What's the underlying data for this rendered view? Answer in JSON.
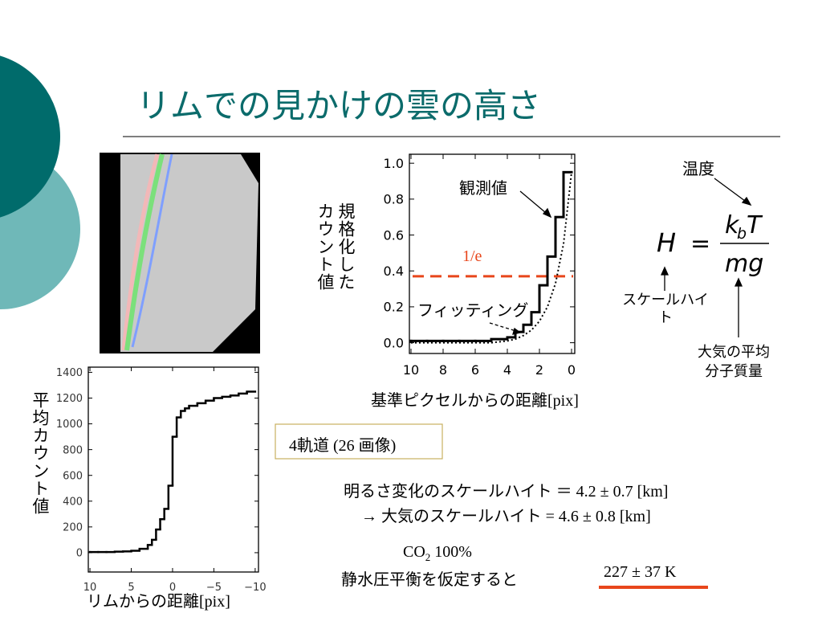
{
  "title": "リムでの見かけの雲の高さ",
  "chart_data": [
    {
      "type": "step",
      "x_label": "基準ピクセルからの距離[pix]",
      "y_label": "規格化したカウント値",
      "x": [
        10,
        9,
        8,
        7,
        6,
        5,
        4,
        3.5,
        3,
        2.5,
        2,
        1.5,
        1,
        0.5,
        0
      ],
      "series": [
        {
          "name": "観測値",
          "color": "#000000",
          "style": "solid",
          "values": [
            0.01,
            0.01,
            0.01,
            0.01,
            0.01,
            0.01,
            0.02,
            0.03,
            0.06,
            0.1,
            0.17,
            0.32,
            0.48,
            0.7,
            0.95
          ]
        },
        {
          "name": "フィッティング",
          "color": "#000000",
          "style": "dotted",
          "values": [
            0,
            0,
            0,
            0,
            0,
            0,
            0.01,
            0.02,
            0.04,
            0.07,
            0.12,
            0.2,
            0.33,
            0.55,
            0.95
          ]
        }
      ],
      "reference_line": {
        "label": "1/e",
        "value": 0.37,
        "color": "#e8461b"
      },
      "xlim": [
        10.1,
        -0.2
      ],
      "xticks": [
        10,
        8,
        6,
        4,
        2,
        0
      ],
      "ylim": [
        -0.06,
        1.05
      ],
      "yticks": [
        {
          "value": 0,
          "label": "0.0"
        },
        0.2,
        0.4,
        0.6,
        0.8,
        {
          "value": 1,
          "label": "1.0"
        }
      ]
    },
    {
      "type": "step",
      "x_label": "リムからの距離[pix]",
      "y_label": "平均カウント値",
      "x": [
        10,
        9,
        8,
        7,
        6,
        5,
        4,
        3,
        2.5,
        2,
        1.5,
        1,
        0.5,
        0,
        -0.5,
        -1,
        -1.5,
        -2,
        -3,
        -4,
        -5,
        -6,
        -7,
        -8,
        -9,
        -10
      ],
      "series": [
        {
          "color": "#000000",
          "style": "solid",
          "values": [
            5,
            5,
            5,
            5,
            8,
            10,
            15,
            30,
            60,
            100,
            180,
            260,
            340,
            520,
            900,
            1050,
            1100,
            1120,
            1140,
            1160,
            1180,
            1200,
            1210,
            1220,
            1235,
            1250
          ]
        }
      ],
      "xlim": [
        10.2,
        -10.4
      ],
      "xticks": [
        10,
        5,
        0,
        {
          "value": -5,
          "label": "−5"
        },
        {
          "value": -10,
          "label": "−10"
        }
      ],
      "ylim": [
        -150,
        1440
      ],
      "yticks": [
        0,
        200,
        400,
        600,
        800,
        1000,
        1200,
        1400
      ]
    }
  ],
  "formula": {
    "lhs": "H",
    "equals": "=",
    "numerator": "k",
    "numerator_sub": "b",
    "numerator_var": "T",
    "denominator": "mg"
  },
  "labels": {
    "temperature": "温度",
    "scale_height": "スケールハイト",
    "molecular_mass": "大気の平均分子質量"
  },
  "orbits": "4軌道 (26 画像)",
  "results": [
    "明るさ変化のスケールハイト ＝ 4.2 ± 0.7 [km]",
    "→ 大気のスケールハイト = 4.6 ± 0.8 [km]"
  ],
  "assumption": {
    "species": "CO",
    "subscript": "2",
    "fraction": " 100%",
    "condition": "静水圧平衡を仮定すると"
  },
  "temperature_result": "227 ± 37 K"
}
